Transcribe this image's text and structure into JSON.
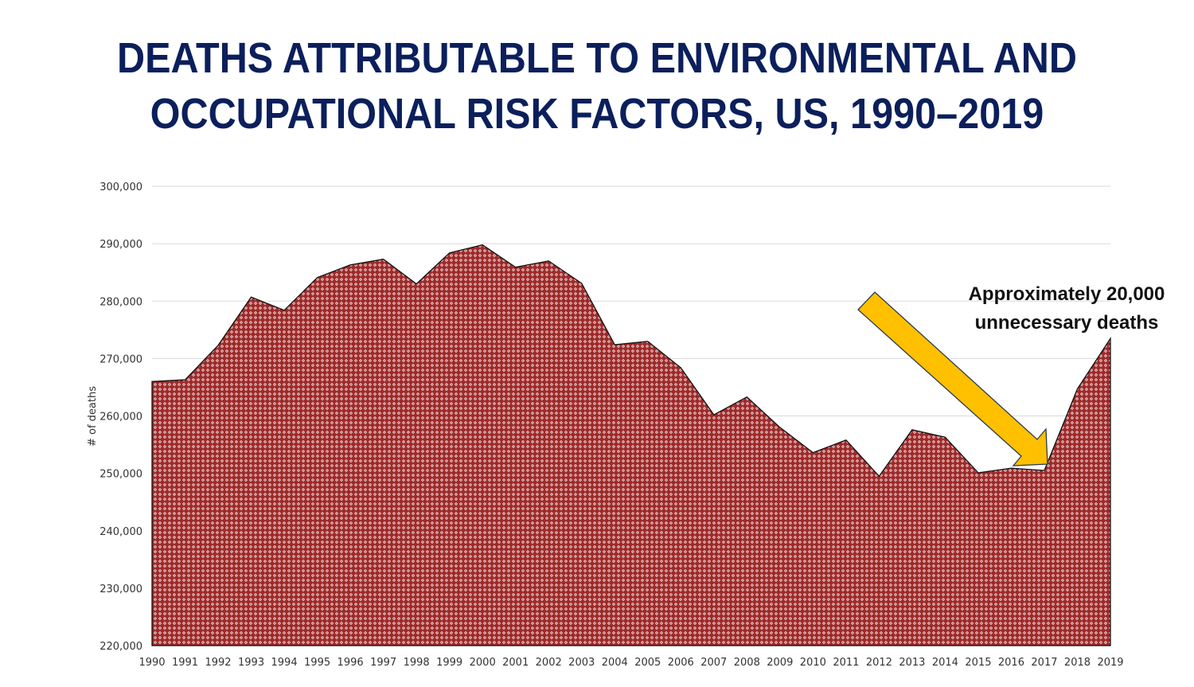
{
  "title_line1": "DEATHS ATTRIBUTABLE TO ENVIRONMENTAL AND",
  "title_line2": "OCCUPATIONAL RISK FACTORS, US, 1990–2019",
  "annotation_line1": "Approximately 20,000",
  "annotation_line2": "unnecessary deaths",
  "colors": {
    "title": "#0b1f5c",
    "area": "#9e2a2a",
    "arrow": "#ffc000"
  },
  "chart_data": {
    "type": "area",
    "title": "DEATHS ATTRIBUTABLE TO ENVIRONMENTAL AND OCCUPATIONAL RISK FACTORS, US, 1990–2019",
    "xlabel": "",
    "ylabel": "# of deaths",
    "ylim": [
      220000,
      300000
    ],
    "yticks": [
      "220,000",
      "230,000",
      "240,000",
      "250,000",
      "260,000",
      "270,000",
      "280,000",
      "290,000",
      "300,000"
    ],
    "grid": true,
    "x": [
      "1990",
      "1991",
      "1992",
      "1993",
      "1994",
      "1995",
      "1996",
      "1997",
      "1998",
      "1999",
      "2000",
      "2001",
      "2002",
      "2003",
      "2004",
      "2005",
      "2006",
      "2007",
      "2008",
      "2009",
      "2010",
      "2011",
      "2012",
      "2013",
      "2014",
      "2015",
      "2016",
      "2017",
      "2018",
      "2019"
    ],
    "values": [
      266000,
      266300,
      272300,
      280700,
      278400,
      284100,
      286300,
      287300,
      283000,
      288400,
      289800,
      285900,
      287000,
      283100,
      272400,
      273000,
      268400,
      260200,
      263300,
      258000,
      253600,
      255800,
      249500,
      257600,
      256300,
      250100,
      250900,
      250500,
      264700,
      273500
    ]
  }
}
